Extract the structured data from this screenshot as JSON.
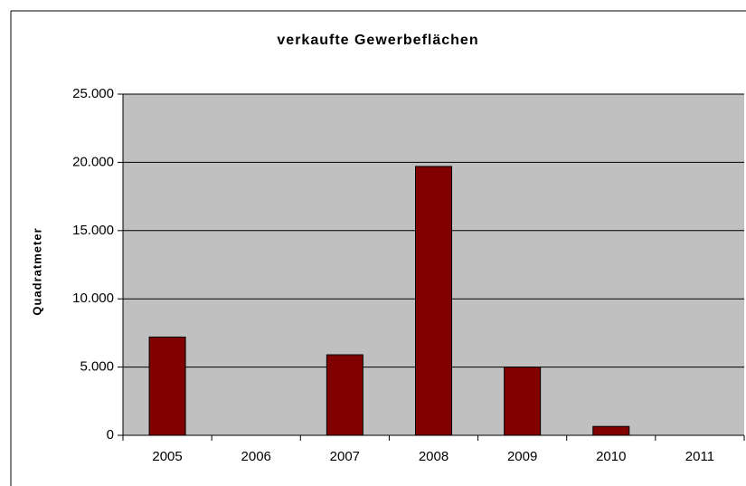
{
  "chart_data": {
    "type": "bar",
    "title": "verkaufte Gewerbeflächen",
    "y_label": "Quadratmeter",
    "categories": [
      "2005",
      "2006",
      "2007",
      "2008",
      "2009",
      "2010",
      "2011"
    ],
    "values": [
      7200,
      0,
      5900,
      19700,
      5000,
      650,
      0
    ],
    "color": "#800000",
    "ylim": [
      0,
      25000
    ],
    "yticks": [
      0,
      {
        "value": 5000,
        "label": "5.000"
      },
      {
        "value": 10000,
        "label": "10.000"
      },
      {
        "value": 15000,
        "label": "15.000"
      },
      {
        "value": 20000,
        "label": "20.000"
      },
      {
        "value": 25000,
        "label": "25.000"
      }
    ],
    "grid": true,
    "plot_background": "#c0c0c0"
  }
}
